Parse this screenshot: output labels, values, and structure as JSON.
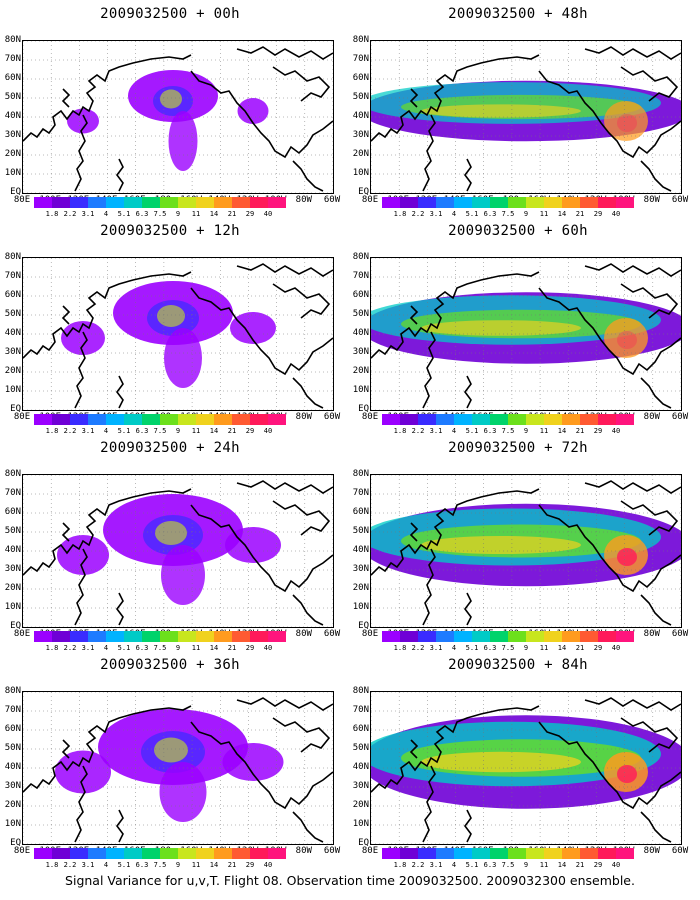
{
  "panels": [
    {
      "title": "2009032500 + 00h",
      "intensity": 0.15
    },
    {
      "title": "2009032500 + 48h",
      "intensity": 0.55
    },
    {
      "title": "2009032500 + 12h",
      "intensity": 0.3
    },
    {
      "title": "2009032500 + 60h",
      "intensity": 0.65
    },
    {
      "title": "2009032500 + 24h",
      "intensity": 0.4
    },
    {
      "title": "2009032500 + 72h",
      "intensity": 0.75
    },
    {
      "title": "2009032500 + 36h",
      "intensity": 0.45
    },
    {
      "title": "2009032500 + 84h",
      "intensity": 0.85
    }
  ],
  "lat_labels": [
    "80N",
    "70N",
    "60N",
    "50N",
    "40N",
    "30N",
    "20N",
    "10N",
    "EQ"
  ],
  "lon_labels": [
    "80E",
    "100E",
    "120E",
    "140E",
    "160E",
    "180",
    "160W",
    "140W",
    "120W",
    "100W",
    "80W",
    "60W"
  ],
  "colorbar": {
    "labels": [
      "1.8",
      "2.2",
      "3.1",
      "4",
      "5.1",
      "6.3",
      "7.5",
      "9",
      "11",
      "14",
      "21",
      "29",
      "40"
    ],
    "colors": [
      "#9b00ff",
      "#6f00d6",
      "#3a2cff",
      "#1e7bff",
      "#00b3ff",
      "#00cbc6",
      "#00d36b",
      "#6ce01c",
      "#c8e61e",
      "#f0d21e",
      "#ff9b1e",
      "#ff5a32",
      "#ff1a5a",
      "#ff147d"
    ]
  },
  "footer": "Signal Variance for u,v,T. Flight 08. Observation time 2009032500. 2009032300 ensemble."
}
